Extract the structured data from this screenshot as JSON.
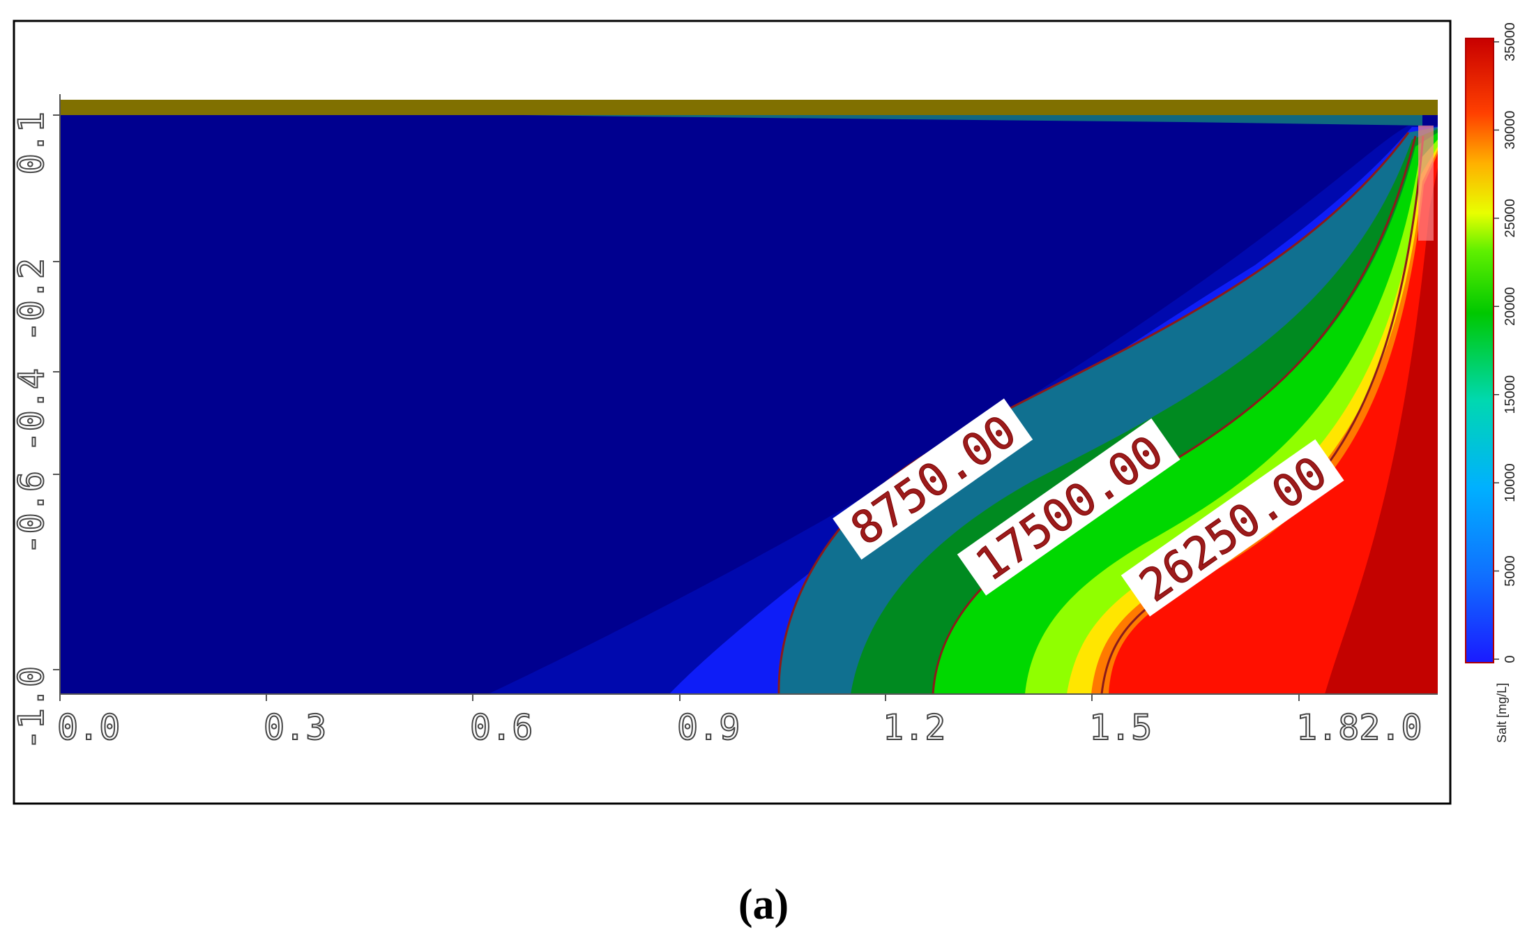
{
  "chart_data": {
    "type": "heatmap",
    "title": "",
    "x_ticks": [
      "0.0",
      "0.3",
      "0.6",
      "0.9",
      "1.2",
      "1.5",
      "1.82.0"
    ],
    "y_ticks": [
      "0.1",
      "-0.2",
      "-0.4",
      "-0.6",
      "-1.0"
    ],
    "xlim": [
      0.0,
      2.0
    ],
    "ylim": [
      -1.0,
      0.1
    ],
    "colorbar": {
      "label": "Salt [mg/L]",
      "ticks": [
        "0",
        "5000",
        "10000",
        "15000",
        "20000",
        "25000",
        "30000",
        "35000"
      ],
      "range": [
        0,
        35000
      ],
      "colors": [
        "#1010ff",
        "#00a0ff",
        "#00d0a0",
        "#00c000",
        "#80ff00",
        "#ffff00",
        "#ff8000",
        "#ff0000",
        "#b00000"
      ]
    },
    "contours": [
      {
        "level": 8750,
        "label": "8750.00"
      },
      {
        "level": 17500,
        "label": "17500.00"
      },
      {
        "level": 26250,
        "label": "26250.00"
      }
    ],
    "contour_color": "#8b1a1a",
    "top_layer_color": "#807000"
  },
  "caption": "(a)"
}
